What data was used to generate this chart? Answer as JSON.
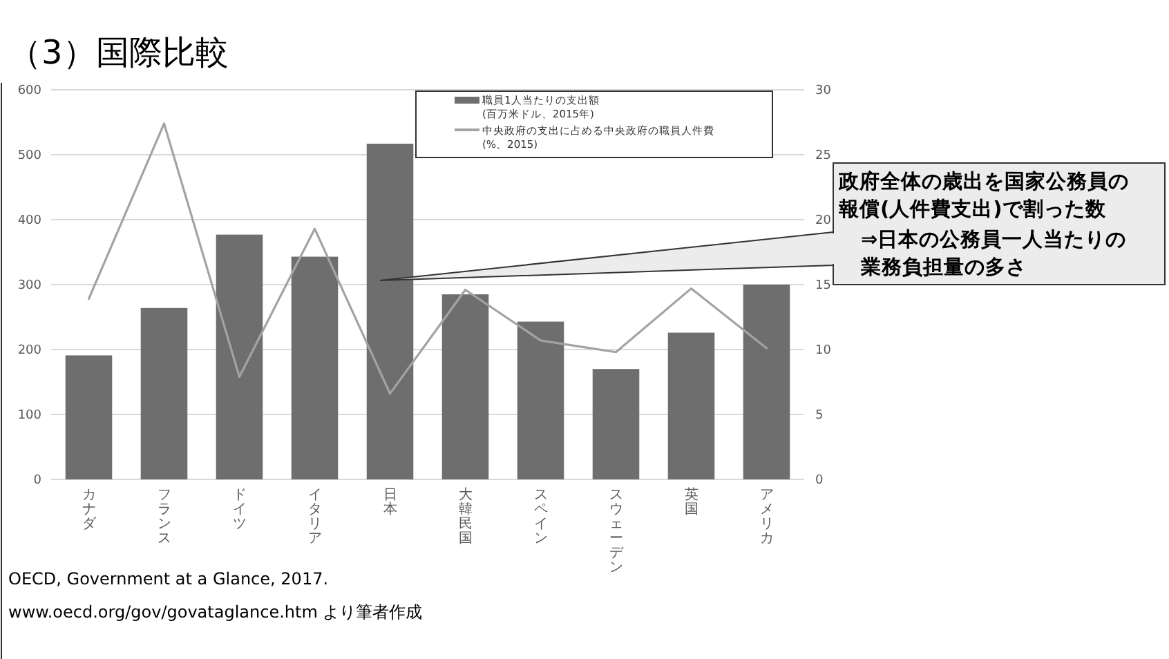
{
  "chart_data": {
    "type": "bar",
    "title": "（3）国際比較",
    "categories": [
      "カナダ",
      "フランス",
      "ドイツ",
      "イタリア",
      "日本",
      "大韓民国",
      "スペイン",
      "スウェーデン",
      "英国",
      "アメリカ"
    ],
    "series": [
      {
        "name": "職員1人当たりの支出額\n(百万米ドル、2015年)",
        "color": "#6e6e6e",
        "values": [
          191,
          264,
          377,
          343,
          517,
          285,
          243,
          170,
          226,
          300
        ]
      },
      {
        "name": "中央政府の支出に占める中央政府の職員人件費\n(%、2015)",
        "type": "line",
        "axis": "y2",
        "color": "#a3a3a3",
        "values": [
          13.9,
          27.4,
          7.9,
          19.3,
          6.6,
          14.6,
          10.7,
          9.8,
          14.7,
          10.1
        ]
      }
    ],
    "ylim": [
      0,
      600
    ],
    "yticks": [
      0,
      100,
      200,
      300,
      400,
      500,
      600
    ],
    "y2lim": [
      0,
      30
    ],
    "y2ticks": [
      0,
      5,
      10,
      15,
      20,
      25,
      30
    ],
    "grid": "y",
    "legend": "top",
    "annotations": [
      "政府全体の歳出を国家公務員の報償(人件費支出)で割った数",
      "⇒日本の公務員一人当たりの業務負担量の多さ",
      "OECD, Government at a Glance, 2017.",
      "www.oecd.org/gov/govataglance.htm より筆者作成"
    ]
  }
}
